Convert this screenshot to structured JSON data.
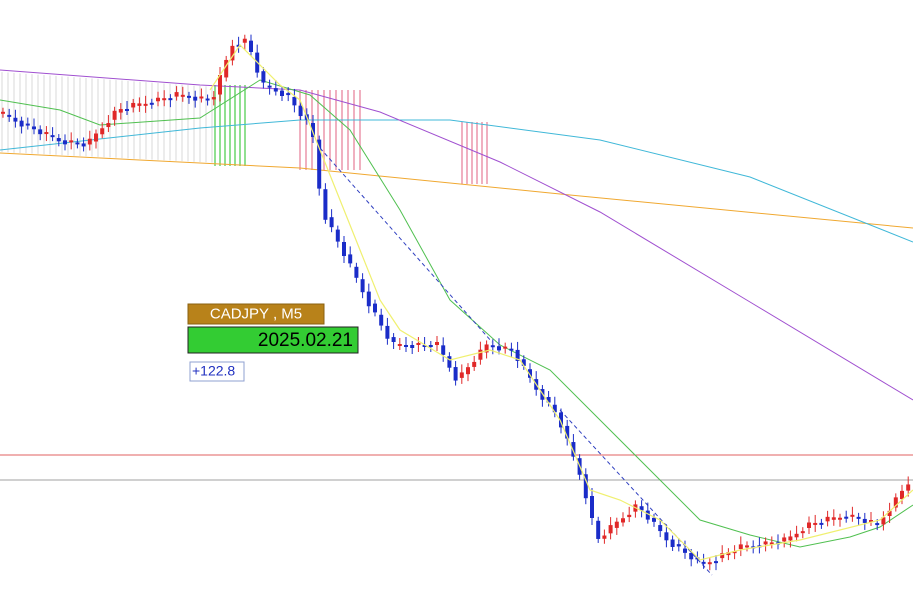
{
  "label": {
    "symbol": "CADJPY , M5",
    "date": "2025.02.21"
  },
  "annotation": "+122.8"
}
